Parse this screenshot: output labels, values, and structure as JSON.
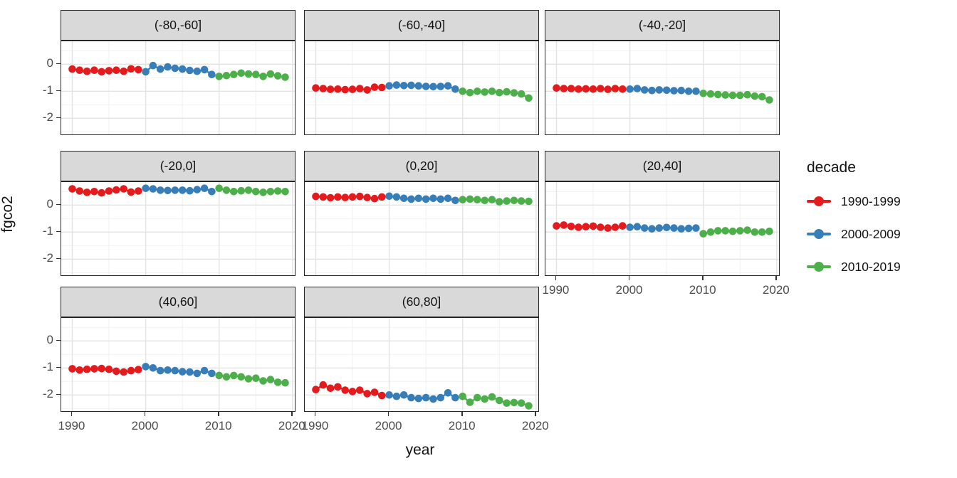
{
  "chart_data": {
    "type": "scatter",
    "title": "",
    "xlabel": "year",
    "ylabel": "fgco2",
    "grid": true,
    "xlim": [
      1988.5,
      2020.5
    ],
    "ylim": [
      -2.65,
      0.85
    ],
    "x_ticks": [
      1990,
      2000,
      2010,
      2020
    ],
    "x_tick_labels": [
      "1990",
      "2000",
      "2010",
      "2020"
    ],
    "minor_x": [
      1995,
      2005,
      2015
    ],
    "y_ticks": [
      0,
      -1,
      -2
    ],
    "y_tick_labels": [
      "0",
      "-1",
      "-2"
    ],
    "minor_y": [
      0.5,
      -0.5,
      -1.5,
      -2.5
    ],
    "legend": {
      "title": "decade",
      "position": "right"
    },
    "colors": {
      "grid_major": "#e3e3e3",
      "grid_minor": "#f1f1f1",
      "strip_bg": "#d9d9d9",
      "panel_border": "#262626",
      "tick_text": "#4d4d4d"
    },
    "decades": [
      {
        "name": "1990-1999",
        "start": 1990,
        "color": "#E41A1C"
      },
      {
        "name": "2000-2009",
        "start": 2000,
        "color": "#377EB8"
      },
      {
        "name": "2010-2019",
        "start": 2010,
        "color": "#4DAF4A"
      }
    ],
    "facets": [
      {
        "label": "(-80,-60]",
        "values": {
          "1990-1999": [
            -0.18,
            -0.22,
            -0.26,
            -0.22,
            -0.28,
            -0.24,
            -0.22,
            -0.26,
            -0.17,
            -0.2
          ],
          "2000-2009": [
            -0.28,
            -0.05,
            -0.18,
            -0.1,
            -0.15,
            -0.18,
            -0.23,
            -0.26,
            -0.2,
            -0.38
          ],
          "2010-2019": [
            -0.45,
            -0.42,
            -0.38,
            -0.33,
            -0.36,
            -0.38,
            -0.45,
            -0.36,
            -0.43,
            -0.48
          ]
        }
      },
      {
        "label": "(-60,-40]",
        "values": {
          "1990-1999": [
            -0.88,
            -0.9,
            -0.93,
            -0.92,
            -0.94,
            -0.93,
            -0.9,
            -0.95,
            -0.85,
            -0.86
          ],
          "2000-2009": [
            -0.8,
            -0.77,
            -0.79,
            -0.78,
            -0.8,
            -0.82,
            -0.83,
            -0.82,
            -0.8,
            -0.92
          ],
          "2010-2019": [
            -1.0,
            -1.05,
            -1.0,
            -1.03,
            -1.0,
            -1.05,
            -1.02,
            -1.06,
            -1.1,
            -1.25
          ]
        }
      },
      {
        "label": "(-40,-20]",
        "values": {
          "1990-1999": [
            -0.88,
            -0.9,
            -0.9,
            -0.92,
            -0.91,
            -0.92,
            -0.9,
            -0.93,
            -0.9,
            -0.92
          ],
          "2000-2009": [
            -0.92,
            -0.9,
            -0.95,
            -0.97,
            -0.95,
            -0.96,
            -0.98,
            -0.97,
            -1.0,
            -1.0
          ],
          "2010-2019": [
            -1.08,
            -1.1,
            -1.12,
            -1.14,
            -1.15,
            -1.15,
            -1.13,
            -1.18,
            -1.2,
            -1.32
          ]
        }
      },
      {
        "label": "(-20,0]",
        "values": {
          "1990-1999": [
            0.6,
            0.52,
            0.47,
            0.5,
            0.45,
            0.52,
            0.56,
            0.6,
            0.48,
            0.52
          ],
          "2000-2009": [
            0.62,
            0.6,
            0.55,
            0.54,
            0.55,
            0.55,
            0.53,
            0.57,
            0.62,
            0.5
          ],
          "2010-2019": [
            0.62,
            0.55,
            0.5,
            0.53,
            0.55,
            0.5,
            0.47,
            0.5,
            0.52,
            0.5
          ]
        }
      },
      {
        "label": "(0,20]",
        "values": {
          "1990-1999": [
            0.32,
            0.3,
            0.27,
            0.3,
            0.28,
            0.3,
            0.32,
            0.28,
            0.24,
            0.3
          ],
          "2000-2009": [
            0.33,
            0.3,
            0.25,
            0.22,
            0.25,
            0.22,
            0.25,
            0.22,
            0.25,
            0.17
          ],
          "2010-2019": [
            0.2,
            0.22,
            0.2,
            0.17,
            0.2,
            0.12,
            0.15,
            0.17,
            0.15,
            0.14
          ]
        }
      },
      {
        "label": "(20,40]",
        "values": {
          "1990-1999": [
            -0.77,
            -0.74,
            -0.79,
            -0.82,
            -0.8,
            -0.78,
            -0.82,
            -0.85,
            -0.82,
            -0.77
          ],
          "2000-2009": [
            -0.82,
            -0.8,
            -0.85,
            -0.88,
            -0.85,
            -0.83,
            -0.85,
            -0.88,
            -0.86,
            -0.85
          ],
          "2010-2019": [
            -1.06,
            -1.0,
            -0.95,
            -0.95,
            -0.97,
            -0.95,
            -0.93,
            -1.0,
            -1.0,
            -0.97
          ]
        }
      },
      {
        "label": "(40,60]",
        "values": {
          "1990-1999": [
            -1.03,
            -1.08,
            -1.05,
            -1.03,
            -1.02,
            -1.05,
            -1.12,
            -1.15,
            -1.1,
            -1.06
          ],
          "2000-2009": [
            -0.95,
            -1.0,
            -1.1,
            -1.08,
            -1.1,
            -1.14,
            -1.15,
            -1.2,
            -1.1,
            -1.2
          ],
          "2010-2019": [
            -1.28,
            -1.33,
            -1.28,
            -1.33,
            -1.4,
            -1.38,
            -1.48,
            -1.43,
            -1.53,
            -1.55
          ]
        }
      },
      {
        "label": "(60,80]",
        "values": {
          "1990-1999": [
            -1.8,
            -1.63,
            -1.75,
            -1.7,
            -1.82,
            -1.87,
            -1.82,
            -1.95,
            -1.9,
            -2.02
          ],
          "2000-2009": [
            -2.0,
            -2.05,
            -2.0,
            -2.1,
            -2.13,
            -2.1,
            -2.15,
            -2.1,
            -1.92,
            -2.1
          ],
          "2010-2019": [
            -2.05,
            -2.27,
            -2.1,
            -2.15,
            -2.07,
            -2.2,
            -2.3,
            -2.28,
            -2.3,
            -2.4
          ]
        }
      }
    ]
  }
}
